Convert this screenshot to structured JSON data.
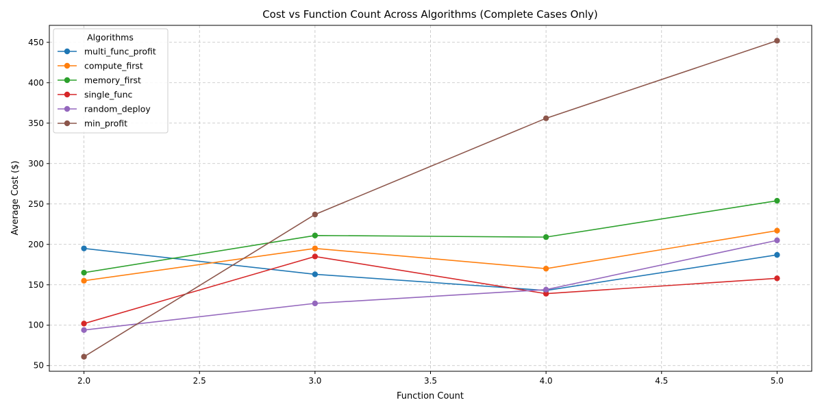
{
  "chart_data": {
    "type": "line",
    "title": "Cost vs Function Count Across Algorithms (Complete Cases Only)",
    "xlabel": "Function Count",
    "ylabel": "Average Cost ($)",
    "x": [
      2.0,
      3.0,
      4.0,
      5.0
    ],
    "xlim": [
      1.85,
      5.15
    ],
    "ylim": [
      43,
      471
    ],
    "xticks": [
      "2.0",
      "2.5",
      "3.0",
      "3.5",
      "4.0",
      "4.5",
      "5.0"
    ],
    "yticks": [
      "50",
      "100",
      "150",
      "200",
      "250",
      "300",
      "350",
      "400",
      "450"
    ],
    "grid": true,
    "legend": {
      "title": "Algorithms",
      "placement": "top-left"
    },
    "series": [
      {
        "name": "multi_func_profit",
        "color": "#1f77b4",
        "values": [
          195,
          163,
          143,
          187
        ]
      },
      {
        "name": "compute_first",
        "color": "#ff7f0e",
        "values": [
          155,
          195,
          170,
          217
        ]
      },
      {
        "name": "memory_first",
        "color": "#2ca02c",
        "values": [
          165,
          211,
          209,
          254
        ]
      },
      {
        "name": "single_func",
        "color": "#d62728",
        "values": [
          102,
          185,
          139,
          158
        ]
      },
      {
        "name": "random_deploy",
        "color": "#9467bd",
        "values": [
          94,
          127,
          144,
          205
        ]
      },
      {
        "name": "min_profit",
        "color": "#8c564b",
        "values": [
          61,
          237,
          356,
          452
        ]
      }
    ]
  }
}
